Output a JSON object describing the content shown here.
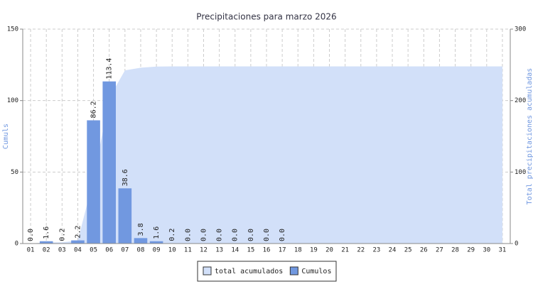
{
  "chart_data": {
    "type": "bar",
    "title": "Precipitaciones para marzo 2026",
    "y_label": "Cumuls",
    "y2_label": "Total precipitaciones acumuladas",
    "categories": [
      "01",
      "02",
      "03",
      "04",
      "05",
      "06",
      "07",
      "08",
      "09",
      "10",
      "11",
      "12",
      "13",
      "14",
      "15",
      "16",
      "17",
      "18",
      "19",
      "20",
      "21",
      "22",
      "23",
      "24",
      "25",
      "26",
      "27",
      "28",
      "29",
      "30",
      "31"
    ],
    "series": [
      {
        "name": "total acumulados",
        "color": "#d2e0f9",
        "type": "area",
        "axis": "y2",
        "values": [
          0,
          1.6,
          1.8,
          4.0,
          90.2,
          203.6,
          242.2,
          246.0,
          247.6,
          247.8,
          247.8,
          247.8,
          247.8,
          247.8,
          247.8,
          247.8,
          247.8,
          247.8,
          247.8,
          247.8,
          247.8,
          247.8,
          247.8,
          247.8,
          247.8,
          247.8,
          247.8,
          247.8,
          247.8,
          247.8,
          247.8
        ]
      },
      {
        "name": "Cumulos",
        "color": "#7198e0",
        "type": "bar",
        "values": [
          0,
          1.6,
          0.2,
          2.2,
          86.2,
          113.4,
          38.6,
          3.8,
          1.6,
          0.2,
          0,
          0,
          0,
          0,
          0,
          0,
          0,
          null,
          null,
          null,
          null,
          null,
          null,
          null,
          null,
          null,
          null,
          null,
          null,
          null,
          null
        ],
        "value_labels": [
          "0.0",
          "1.6",
          "0.2",
          "2.2",
          "86.2",
          "113.4",
          "38.6",
          "3.8",
          "1.6",
          "0.2",
          "0.0",
          "0.0",
          "0.0",
          "0.0",
          "0.0",
          "0.0",
          "0.0",
          null,
          null,
          null,
          null,
          null,
          null,
          null,
          null,
          null,
          null,
          null,
          null,
          null,
          null
        ]
      }
    ],
    "ylim": [
      0,
      150
    ],
    "yticks": [
      0,
      50,
      100,
      150
    ],
    "y2lim": [
      0,
      300
    ],
    "y2ticks": [
      0,
      100,
      200,
      300
    ],
    "grid": true,
    "legend": "bottom"
  }
}
